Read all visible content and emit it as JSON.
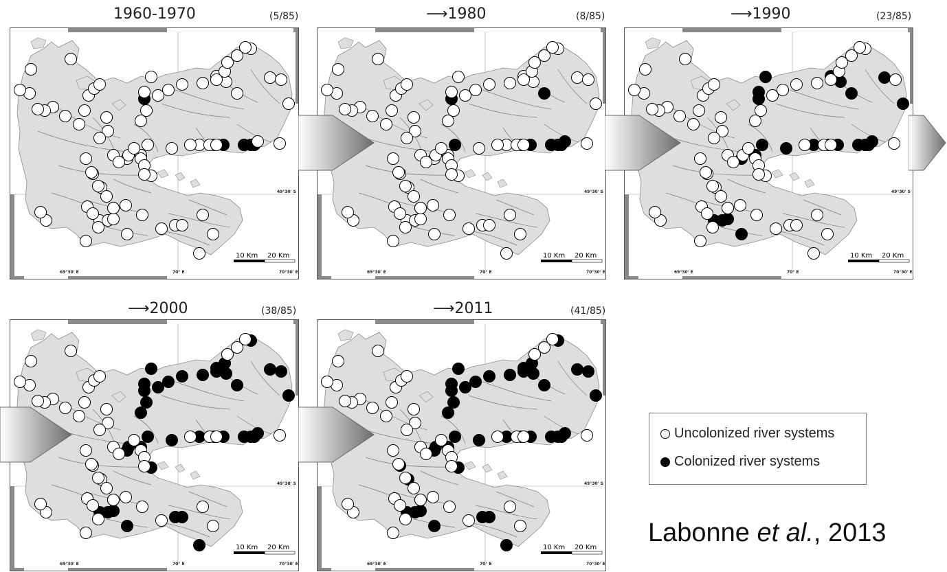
{
  "panels": [
    {
      "title": "1960-1970",
      "count": "(5/85)",
      "colonized": 5
    },
    {
      "title": "⟶1980",
      "count": "(8/85)",
      "colonized": 8
    },
    {
      "title": "⟶1990",
      "count": "(23/85)",
      "colonized": 23
    },
    {
      "title": "⟶2000",
      "count": "(38/85)",
      "colonized": 38
    },
    {
      "title": "⟶2011",
      "count": "(41/85)",
      "colonized": 41
    }
  ],
  "map_labels": {
    "lat": "49°30' S",
    "lon_left": "69°30' E",
    "lon_mid": "70° E",
    "lon_right": "70°30' E",
    "scale_10": "10 Km",
    "scale_20": "20 Km"
  },
  "legend": {
    "uncolonized": "Uncolonized river systems",
    "colonized": "Colonized river systems"
  },
  "citation": {
    "author": "Labonne ",
    "etal": "et al.",
    "rest": ", 2013"
  },
  "colors": {
    "land": "#dedede",
    "rivers": "#7a7a7a",
    "colonized": "#000000",
    "uncolonized": "#ffffff"
  }
}
